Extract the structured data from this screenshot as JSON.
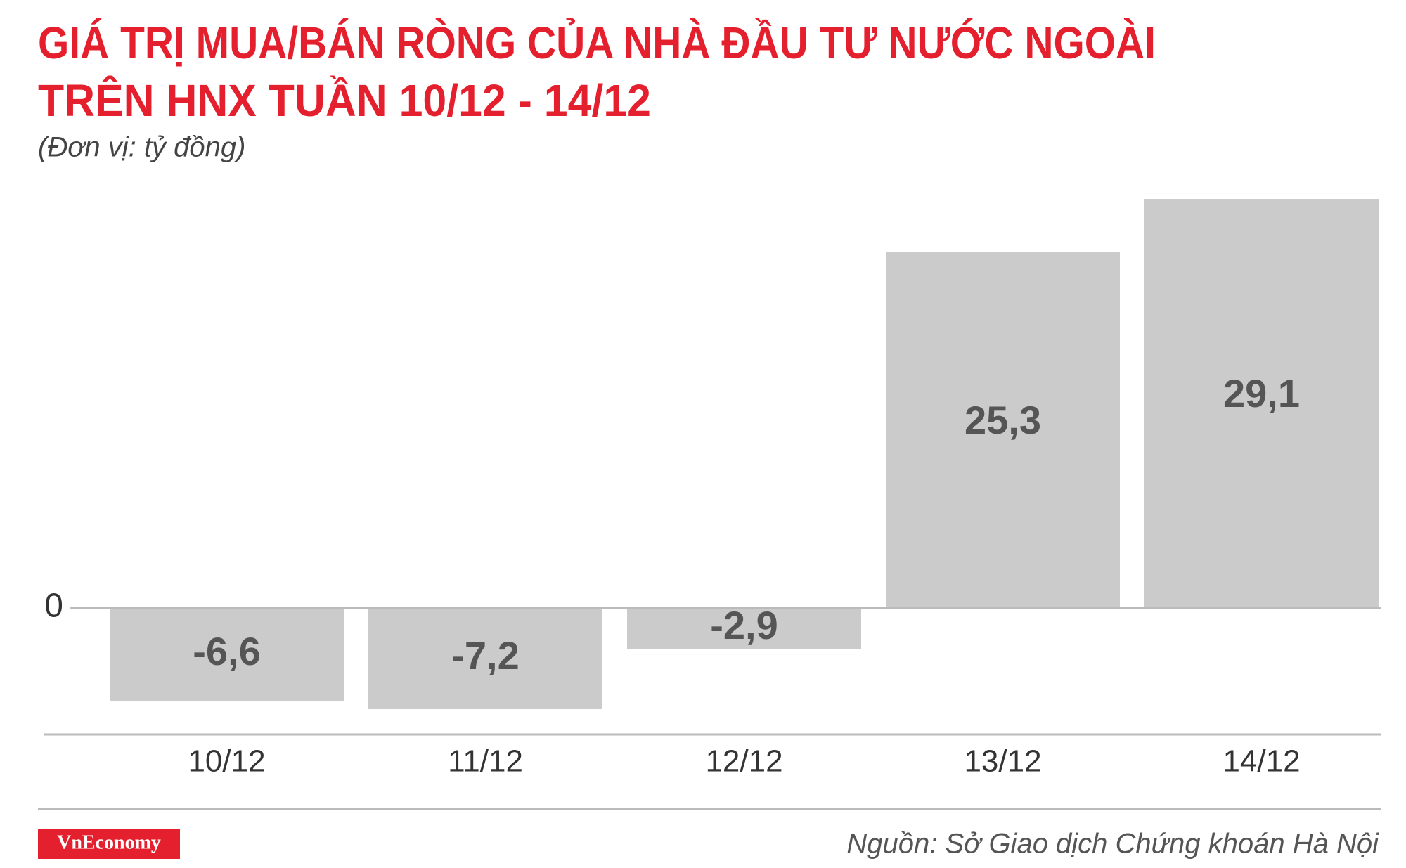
{
  "chart_data": {
    "type": "bar",
    "title": [
      "GIÁ TRỊ MUA/BÁN RÒNG CỦA NHÀ ĐẦU TƯ NƯỚC NGOÀI",
      "TRÊN HNX TUẦN 10/12 - 14/12"
    ],
    "subtitle": "(Đơn vị: tỷ đồng)",
    "categories": [
      "10/12",
      "11/12",
      "12/12",
      "13/12",
      "14/12"
    ],
    "values": [
      -6.6,
      -7.2,
      -2.9,
      25.3,
      29.1
    ],
    "value_labels": [
      "-6,6",
      "-7,2",
      "-2,9",
      "25,3",
      "29,1"
    ],
    "color": "#cccbcb",
    "ylim": [
      -8,
      30
    ],
    "yticks": [
      0
    ],
    "logo": "VnEconomy",
    "source": "Nguồn: Sở Giao dịch Chứng khoán Hà Nội"
  }
}
